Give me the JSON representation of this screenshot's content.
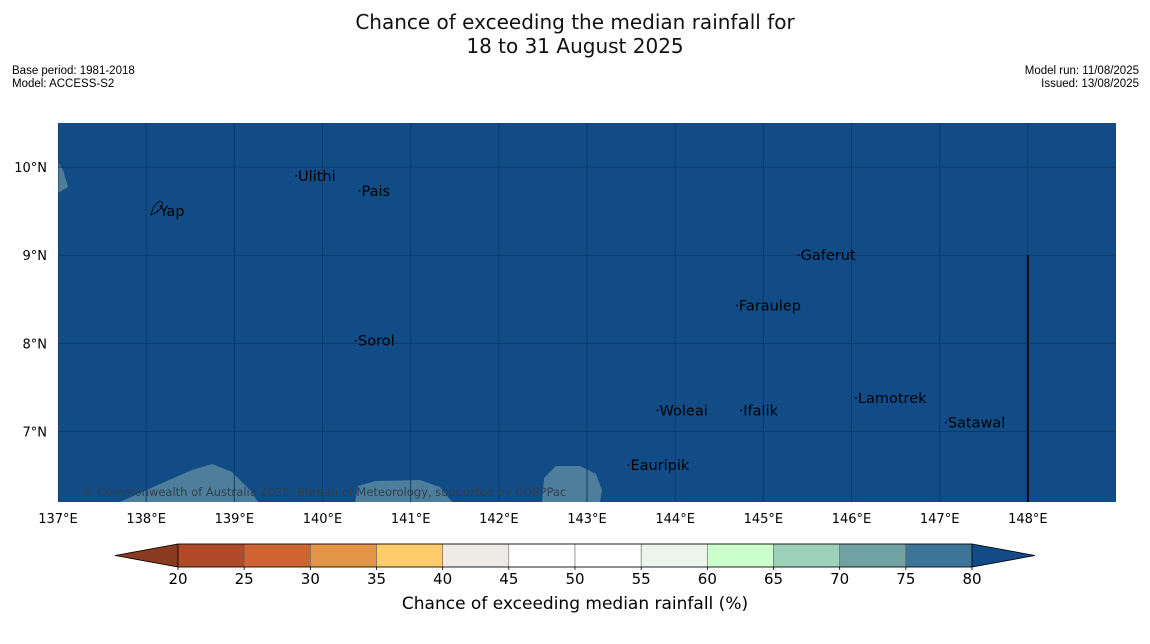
{
  "title": {
    "line1": "Chance of exceeding the median rainfall for",
    "line2": "18 to 31 August 2025"
  },
  "meta_left": {
    "base_period": "Base period: 1981-2018",
    "model": "Model: ACCESS-S2"
  },
  "meta_right": {
    "model_run": "Model run: 11/08/2025",
    "issued": "Issued: 13/08/2025"
  },
  "map": {
    "lon_range": [
      137,
      149
    ],
    "lat_range": [
      6.2,
      10.5
    ],
    "x_ticks": [
      {
        "value": 137,
        "label": "137°E"
      },
      {
        "value": 138,
        "label": "138°E"
      },
      {
        "value": 139,
        "label": "139°E"
      },
      {
        "value": 140,
        "label": "140°E"
      },
      {
        "value": 141,
        "label": "141°E"
      },
      {
        "value": 142,
        "label": "142°E"
      },
      {
        "value": 143,
        "label": "143°E"
      },
      {
        "value": 144,
        "label": "144°E"
      },
      {
        "value": 145,
        "label": "145°E"
      },
      {
        "value": 146,
        "label": "146°E"
      },
      {
        "value": 147,
        "label": "147°E"
      },
      {
        "value": 148,
        "label": "148°E"
      }
    ],
    "y_ticks": [
      {
        "value": 10,
        "label": "10°N"
      },
      {
        "value": 9,
        "label": "9°N"
      },
      {
        "value": 8,
        "label": "8°N"
      },
      {
        "value": 7,
        "label": "7°N"
      }
    ],
    "places": [
      {
        "name": "Yap",
        "lon": 138.13,
        "lat": 9.5
      },
      {
        "name": "Ulithi",
        "lon": 139.7,
        "lat": 9.9
      },
      {
        "name": "Pais",
        "lon": 140.42,
        "lat": 9.73
      },
      {
        "name": "Gaferut",
        "lon": 145.4,
        "lat": 9.0
      },
      {
        "name": "Faraulep",
        "lon": 144.7,
        "lat": 8.43
      },
      {
        "name": "Sorol",
        "lon": 140.38,
        "lat": 8.03
      },
      {
        "name": "Lamotrek",
        "lon": 146.05,
        "lat": 7.38
      },
      {
        "name": "Woleai",
        "lon": 143.8,
        "lat": 7.24
      },
      {
        "name": "Ifalik",
        "lon": 144.75,
        "lat": 7.24
      },
      {
        "name": "Satawal",
        "lon": 147.07,
        "lat": 7.1
      },
      {
        "name": "Eauripik",
        "lon": 143.47,
        "lat": 6.62
      }
    ],
    "boundary_lon": 148.0,
    "boundary_lat_top": 9.0,
    "ocean_color": "#124c87",
    "copyright": "© Commonwealth of Australia 2025, Bureau of Meteorology, supported by COSPPac"
  },
  "colorbar": {
    "ticks": [
      "20",
      "25",
      "30",
      "35",
      "40",
      "45",
      "50",
      "55",
      "60",
      "65",
      "70",
      "75",
      "80"
    ],
    "colors": [
      "#b04a29",
      "#cf6432",
      "#e39547",
      "#fdcb69",
      "#eeebe6",
      "#ffffff",
      "#ffffff",
      "#ebf5ec",
      "#cbffcc",
      "#9ed1b9",
      "#6ea2a3",
      "#3d7599"
    ],
    "under_color": "#8b3a22",
    "over_color": "#124c87",
    "label": "Chance of exceeding median rainfall (%)"
  }
}
